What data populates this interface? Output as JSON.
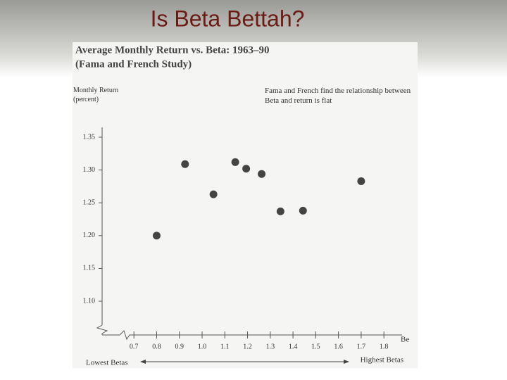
{
  "slide_title": "Is Beta Bettah?",
  "chart_data": {
    "type": "scatter",
    "title": "Average Monthly Return vs. Beta: 1963–90",
    "subtitle": "(Fama and French Study)",
    "y_label": "Monthly Return (percent)",
    "x_label": "Be",
    "annotation": "Fama and French find the relationship between Beta and return is flat",
    "x_low_label": "Lowest Betas",
    "x_high_label": "Highest Betas",
    "color": "#444444",
    "x": [
      0.8,
      0.925,
      1.05,
      1.146,
      1.194,
      1.262,
      1.345,
      1.444,
      1.7
    ],
    "values": [
      1.2,
      1.309,
      1.263,
      1.312,
      1.302,
      1.294,
      1.237,
      1.238,
      1.283
    ],
    "xlim": [
      0.56,
      1.88
    ],
    "ylim": [
      1.055,
      1.365
    ],
    "xticks": [
      0.7,
      0.8,
      0.9,
      {
        "value": 1,
        "label": "1.0"
      },
      1.1,
      1.2,
      1.3,
      1.4,
      1.5,
      1.6,
      1.7,
      1.8
    ],
    "yticks": [
      {
        "value": 1.1,
        "label": "1.10"
      },
      1.15,
      {
        "value": 1.2,
        "label": "1.20"
      },
      1.25,
      {
        "value": 1.3,
        "label": "1.30"
      },
      1.35
    ],
    "grid": false
  }
}
